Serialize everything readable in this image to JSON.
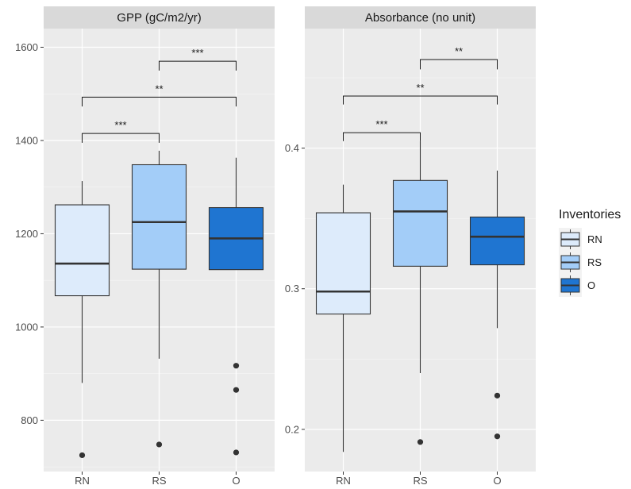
{
  "chart_data": {
    "type": "boxplot",
    "categories": [
      "RN",
      "RS",
      "O"
    ],
    "colors": {
      "RN": "#ddebfb",
      "RS": "#a3cdf8",
      "O": "#1f75d1"
    },
    "legend": {
      "title": "Inventories",
      "position": "right",
      "entries": [
        "RN",
        "RS",
        "O"
      ]
    },
    "grid": true,
    "panels": [
      {
        "strip_title": "GPP (gC/m2/yr)",
        "ylim": [
          690,
          1640
        ],
        "y_ticks": [
          800,
          1000,
          1200,
          1400,
          1600
        ],
        "y_tick_labels": [
          "800",
          "1000",
          "1200",
          "1400",
          "1600"
        ],
        "boxes": [
          {
            "category": "RN",
            "whisker_low": 880,
            "q1": 1067,
            "median": 1136,
            "q3": 1262,
            "whisker_high": 1313,
            "outliers": [
              725
            ]
          },
          {
            "category": "RS",
            "whisker_low": 932,
            "q1": 1124,
            "median": 1225,
            "q3": 1348,
            "whisker_high": 1378,
            "outliers": [
              748
            ]
          },
          {
            "category": "O",
            "whisker_low": 1123,
            "q1": 1123,
            "median": 1190,
            "q3": 1256,
            "whisker_high": 1363,
            "outliers": [
              917,
              865,
              731
            ]
          }
        ],
        "comparisons": [
          {
            "from": "RS",
            "to": "O",
            "y_top": 1570,
            "y_bottom": 1550,
            "label": "***"
          },
          {
            "from": "RN",
            "to": "O",
            "y_top": 1493,
            "y_bottom": 1473,
            "label": "**"
          },
          {
            "from": "RN",
            "to": "RS",
            "y_top": 1415,
            "y_bottom": 1395,
            "label": "***"
          }
        ]
      },
      {
        "strip_title": "Absorbance (no unit)",
        "ylim": [
          0.17,
          0.485
        ],
        "y_ticks": [
          0.2,
          0.3,
          0.4
        ],
        "y_tick_labels": [
          "0.2",
          "0.3",
          "0.4"
        ],
        "boxes": [
          {
            "category": "RN",
            "whisker_low": 0.184,
            "q1": 0.282,
            "median": 0.298,
            "q3": 0.354,
            "whisker_high": 0.374,
            "outliers": []
          },
          {
            "category": "RS",
            "whisker_low": 0.24,
            "q1": 0.316,
            "median": 0.355,
            "q3": 0.377,
            "whisker_high": 0.405,
            "outliers": [
              0.191
            ]
          },
          {
            "category": "O",
            "whisker_low": 0.272,
            "q1": 0.317,
            "median": 0.337,
            "q3": 0.351,
            "whisker_high": 0.384,
            "outliers": [
              0.224,
              0.195
            ]
          }
        ],
        "comparisons": [
          {
            "from": "RS",
            "to": "O",
            "y_top": 0.463,
            "y_bottom": 0.456,
            "label": "**"
          },
          {
            "from": "RN",
            "to": "O",
            "y_top": 0.437,
            "y_bottom": 0.431,
            "label": "**"
          },
          {
            "from": "RN",
            "to": "RS",
            "y_top": 0.411,
            "y_bottom": 0.405,
            "label": "***"
          }
        ]
      }
    ]
  }
}
